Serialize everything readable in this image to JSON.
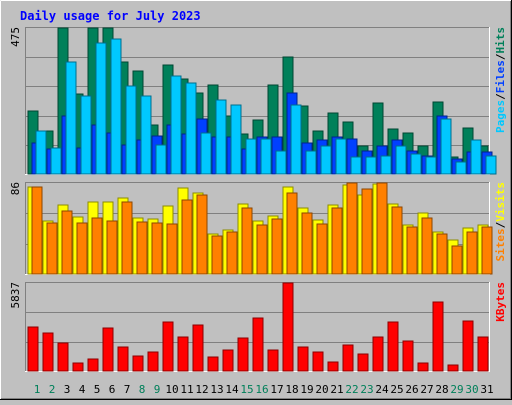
{
  "chart_data": [
    {
      "type": "bar",
      "title": "Daily usage for July 2023",
      "panel": "hits-files-pages",
      "ylim": [
        0,
        475
      ],
      "ytick_label": "475",
      "legend": [
        {
          "label": "Pages",
          "color": "#00c8ff"
        },
        {
          "label": "/",
          "color": "#000000"
        },
        {
          "label": "Files",
          "color": "#0040ff"
        },
        {
          "label": "/",
          "color": "#000000"
        },
        {
          "label": "Hits",
          "color": "#00805a"
        }
      ],
      "categories": [
        "1",
        "2",
        "3",
        "4",
        "5",
        "6",
        "7",
        "8",
        "9",
        "10",
        "11",
        "12",
        "13",
        "14",
        "15",
        "16",
        "17",
        "18",
        "19",
        "20",
        "21",
        "22",
        "23",
        "24",
        "25",
        "26",
        "27",
        "28",
        "29",
        "30",
        "31"
      ],
      "weekend_days": [
        "1",
        "2",
        "8",
        "9",
        "15",
        "16",
        "22",
        "23",
        "29",
        "30"
      ],
      "series": [
        {
          "name": "Hits",
          "color": "#00805a",
          "values": [
            205,
            140,
            475,
            260,
            475,
            475,
            365,
            335,
            160,
            355,
            310,
            265,
            290,
            190,
            130,
            175,
            290,
            380,
            220,
            140,
            200,
            170,
            90,
            230,
            145,
            135,
            90,
            235,
            55,
            150,
            90
          ]
        },
        {
          "name": "Files",
          "color": "#0040ff",
          "values": [
            100,
            80,
            190,
            85,
            160,
            135,
            95,
            110,
            125,
            160,
            130,
            180,
            120,
            120,
            80,
            120,
            120,
            265,
            100,
            110,
            120,
            115,
            75,
            90,
            110,
            75,
            60,
            190,
            50,
            70,
            70
          ]
        },
        {
          "name": "Pages",
          "color": "#00c8ff",
          "values": [
            140,
            85,
            365,
            255,
            425,
            440,
            285,
            255,
            95,
            320,
            295,
            135,
            240,
            225,
            115,
            115,
            75,
            225,
            75,
            90,
            115,
            55,
            55,
            60,
            90,
            65,
            55,
            180,
            40,
            110,
            60
          ]
        }
      ]
    },
    {
      "type": "bar",
      "panel": "visits-sites",
      "ylim": [
        0,
        86
      ],
      "ytick_label": "86",
      "legend": [
        {
          "label": "Sites",
          "color": "#ff8000"
        },
        {
          "label": "/",
          "color": "#000000"
        },
        {
          "label": "Visits",
          "color": "#ffff00"
        }
      ],
      "categories": [
        "1",
        "2",
        "3",
        "4",
        "5",
        "6",
        "7",
        "8",
        "9",
        "10",
        "11",
        "12",
        "13",
        "14",
        "15",
        "16",
        "17",
        "18",
        "19",
        "20",
        "21",
        "22",
        "23",
        "24",
        "25",
        "26",
        "27",
        "28",
        "29",
        "30",
        "31"
      ],
      "series": [
        {
          "name": "Visits",
          "color": "#ffff00",
          "values": [
            82,
            50,
            65,
            54,
            68,
            68,
            72,
            53,
            52,
            64,
            81,
            77,
            38,
            42,
            66,
            50,
            55,
            82,
            62,
            51,
            65,
            84,
            75,
            85,
            66,
            46,
            58,
            40,
            32,
            43,
            46
          ]
        },
        {
          "name": "Sites",
          "color": "#ff8000",
          "values": [
            82,
            48,
            60,
            48,
            53,
            50,
            68,
            49,
            48,
            47,
            70,
            75,
            36,
            40,
            62,
            46,
            52,
            77,
            58,
            47,
            62,
            86,
            80,
            86,
            63,
            44,
            53,
            38,
            26,
            40,
            44
          ]
        }
      ]
    },
    {
      "type": "bar",
      "panel": "kbytes",
      "ylim": [
        0,
        5837
      ],
      "ytick_label": "5837",
      "legend": [
        {
          "label": "KBytes",
          "color": "#ff0000"
        }
      ],
      "categories": [
        "1",
        "2",
        "3",
        "4",
        "5",
        "6",
        "7",
        "8",
        "9",
        "10",
        "11",
        "12",
        "13",
        "14",
        "15",
        "16",
        "17",
        "18",
        "19",
        "20",
        "21",
        "22",
        "23",
        "24",
        "25",
        "26",
        "27",
        "28",
        "29",
        "30",
        "31"
      ],
      "series": [
        {
          "name": "KBytes",
          "color": "#ff0000",
          "values": [
            2900,
            2500,
            1850,
            560,
            800,
            2870,
            1590,
            990,
            1280,
            3220,
            2240,
            3030,
            900,
            1400,
            2220,
            3500,
            1400,
            5837,
            1590,
            1280,
            600,
            1720,
            1130,
            2250,
            3250,
            1960,
            510,
            4590,
            420,
            3330,
            2240
          ]
        }
      ]
    }
  ]
}
